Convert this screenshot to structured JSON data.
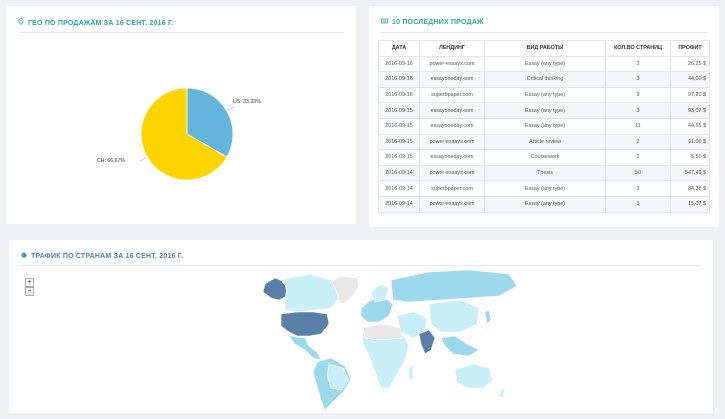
{
  "geo": {
    "title": "ГЕО ПО ПРОДАЖАМ ЗА 16 СЕНТ. 2016 Г.",
    "icon": "map-marker-icon"
  },
  "chart_data": {
    "type": "pie",
    "categories": [
      "US",
      "CH"
    ],
    "values": [
      33.33,
      66.67
    ],
    "labels": [
      "US: 33.33%",
      "CH: 66.67%"
    ],
    "colors": [
      "#64b5dc",
      "#ffd400"
    ]
  },
  "sales": {
    "title": "10 ПОСЛЕДНИХ ПРОДАЖ",
    "icon": "money-icon",
    "columns": [
      "ДАТА",
      "ЛЕНДИНГ",
      "ВИД РАБОТЫ",
      "КОЛ.ВО СТРАНИЦ",
      "ПРОФИТ"
    ],
    "rows": [
      [
        "2016-09-16",
        "power-essays.com",
        "Essay (any type)",
        "2",
        "26,25 $"
      ],
      [
        "2016-09-16",
        "essayoneday.com",
        "Critical thinking",
        "3",
        "44,00 $"
      ],
      [
        "2016-09-16",
        "superbpaper.com",
        "Essay (any type)",
        "9",
        "97,20 $"
      ],
      [
        "2016-09-15",
        "essayoneday.com",
        "Essay (any type)",
        "3",
        "93,02 $"
      ],
      [
        "2016-09-15",
        "essayoneday.com",
        "Essay (any type)",
        "11",
        "44,55 $"
      ],
      [
        "2016-09-15",
        "power-essays.com",
        "Article review",
        "2",
        "11,00 $"
      ],
      [
        "2016-09-15",
        "essayoneday.com",
        "Coursework",
        "2",
        "5,50 $"
      ],
      [
        "2016-09-14",
        "power-essays.com",
        "Thesis",
        "50",
        "547,49 $"
      ],
      [
        "2016-09-14",
        "superbpaper.com",
        "Essay (any type)",
        "3",
        "84,38 $"
      ],
      [
        "2016-09-14",
        "power-essays.com",
        "Essay (any type)",
        "3",
        "15,07 $"
      ]
    ]
  },
  "traffic": {
    "title": "ТРАФИК ПО СТРАНАМ ЗА 16 СЕНТ. 2016 Г.",
    "icon": "globe-icon",
    "zoom_in": "+",
    "zoom_out": "−",
    "colors": {
      "high": "#5a7fa8",
      "medium": "#9cd9ec",
      "low": "#c8eef7",
      "none": "#e8e8e8"
    }
  }
}
